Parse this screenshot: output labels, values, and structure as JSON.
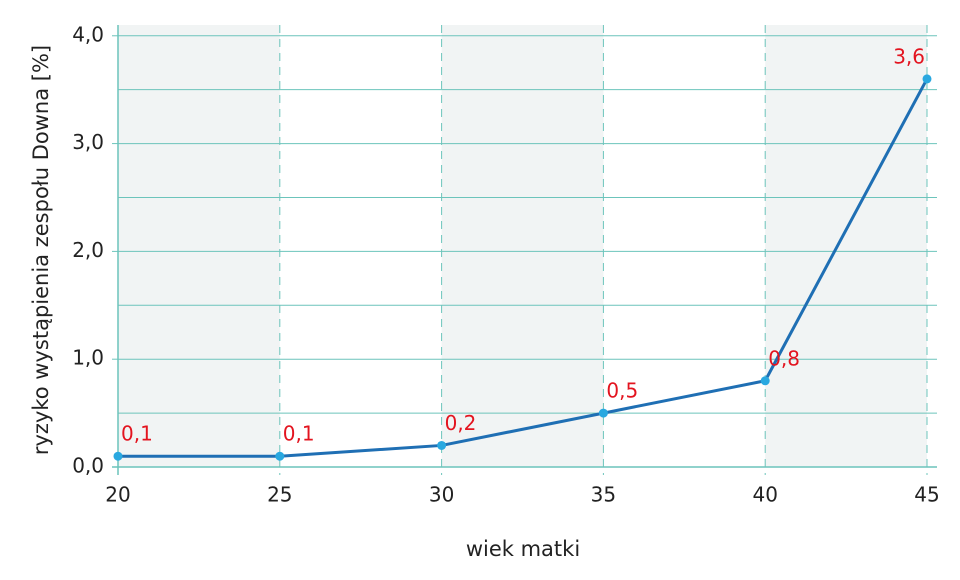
{
  "chart_data": {
    "type": "line",
    "x_label": "wiek matki",
    "y_label": "ryzyko wystąpienia zespołu Downa [%]",
    "x": [
      20,
      25,
      30,
      35,
      40,
      45
    ],
    "series": [
      {
        "color": "#1f6fb4",
        "marker_color": "#29a8e0",
        "label_color": "#e3141f",
        "values": [
          0.1,
          0.1,
          0.2,
          0.5,
          0.8,
          3.6
        ],
        "value_labels": [
          "0,1",
          "0,1",
          "0,2",
          "0,5",
          "0,8",
          "3,6"
        ]
      }
    ],
    "xlim": [
      20,
      45
    ],
    "ylim": [
      0,
      4.1
    ],
    "xticks": [
      20,
      25,
      30,
      35,
      40,
      45
    ],
    "yticks": [
      {
        "value": 0,
        "label": "0,0"
      },
      {
        "value": 1,
        "label": "1,0"
      },
      {
        "value": 2,
        "label": "2,0"
      },
      {
        "value": 3,
        "label": "3,0"
      },
      {
        "value": 4,
        "label": "4,0"
      }
    ],
    "minor_yticks": [
      0.5,
      1.5,
      2.5,
      3.5
    ],
    "grid": true,
    "grid_color": "#6cc4bb",
    "band_color": "#f1f4f4"
  }
}
